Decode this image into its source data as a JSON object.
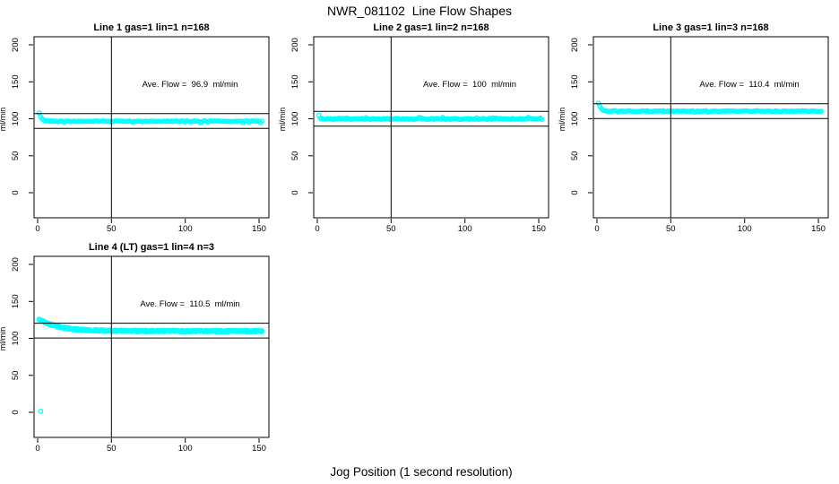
{
  "figure": {
    "title": "NWR_081102  Line Flow Shapes",
    "xlabel": "Jog Position (1 second resolution)",
    "background_color": "#FFFFFF",
    "axis_color": "#000000",
    "point_color": "#00FFFF"
  },
  "chart_data": [
    {
      "type": "scatter",
      "title": "Line 1 gas=1 lin=1 n=168",
      "annotation": "Ave. Flow =  96.9  ml/min",
      "ave_flow": 96.9,
      "units": "ml/min",
      "gas": 1,
      "lin": 1,
      "n": 168,
      "ylabel": "ml/min",
      "x_ticks": [
        0,
        50,
        100,
        150
      ],
      "y_ticks": [
        0,
        50,
        100,
        150,
        200
      ],
      "xlim": [
        0,
        155
      ],
      "ylim": [
        0,
        205
      ],
      "vline_x": 50,
      "hlines": [
        106.9,
        86.9
      ],
      "marker": "open-circle",
      "series_shape": {
        "x_start": 1,
        "x_end": 152,
        "start_y": 108,
        "plateau_y": 96.7,
        "decay_tau": 1.5,
        "noise": 0.5,
        "spike": -1.7,
        "spike_prob": 0.06,
        "runs": 1
      },
      "outliers": []
    },
    {
      "type": "scatter",
      "title": "Line 2 gas=1 lin=2 n=168",
      "annotation": "Ave. Flow =  100  ml/min",
      "ave_flow": 100,
      "units": "ml/min",
      "gas": 1,
      "lin": 2,
      "n": 168,
      "ylabel": "ml/min",
      "x_ticks": [
        0,
        50,
        100,
        150
      ],
      "y_ticks": [
        0,
        50,
        100,
        150,
        200
      ],
      "xlim": [
        0,
        155
      ],
      "ylim": [
        0,
        205
      ],
      "vline_x": 50,
      "hlines": [
        110,
        90
      ],
      "marker": "open-circle",
      "series_shape": {
        "x_start": 1,
        "x_end": 152,
        "start_y": 104,
        "plateau_y": 99.8,
        "decay_tau": 0.9,
        "noise": 0.7,
        "spike": 1.3,
        "spike_prob": 0.06,
        "runs": 1
      },
      "outliers": []
    },
    {
      "type": "scatter",
      "title": "Line 3 gas=1 lin=3 n=168",
      "annotation": "Ave. Flow =  110.4  ml/min",
      "ave_flow": 110.4,
      "units": "ml/min",
      "gas": 1,
      "lin": 3,
      "n": 168,
      "ylabel": "ml/min",
      "x_ticks": [
        0,
        50,
        100,
        150
      ],
      "y_ticks": [
        0,
        50,
        100,
        150,
        200
      ],
      "xlim": [
        0,
        155
      ],
      "ylim": [
        0,
        205
      ],
      "vline_x": 50,
      "hlines": [
        120.4,
        100.4
      ],
      "marker": "open-circle",
      "series_shape": {
        "x_start": 1,
        "x_end": 152,
        "start_y": 121,
        "plateau_y": 110.3,
        "decay_tau": 1.7,
        "noise": 0.6,
        "spike": -0.9,
        "spike_prob": 0.05,
        "runs": 1
      },
      "outliers": []
    },
    {
      "type": "scatter",
      "title": "Line 4 (LT) gas=1 lin=4 n=3",
      "annotation": "Ave. Flow =  110.5  ml/min",
      "ave_flow": 110.5,
      "units": "ml/min",
      "gas": 1,
      "lin": 4,
      "n": 3,
      "ylabel": "ml/min",
      "x_ticks": [
        0,
        50,
        100,
        150
      ],
      "y_ticks": [
        0,
        50,
        100,
        150,
        200
      ],
      "xlim": [
        0,
        155
      ],
      "ylim": [
        0,
        205
      ],
      "vline_x": 50,
      "hlines": [
        120.5,
        100.5
      ],
      "marker": "open-circle",
      "series_shape": {
        "x_start": 1,
        "x_end": 152,
        "start_y": 126,
        "plateau_y": 109.9,
        "decay_tau": 13,
        "noise": 1.1,
        "spike": 0,
        "spike_prob": 0,
        "runs": 3
      },
      "outliers": [
        [
          2,
          1.5
        ]
      ]
    }
  ],
  "layout_hints": {
    "grid": "off",
    "legend": "none",
    "panel_grid": "2 rows x 3 cols; panels at (1,1),(1,2),(1,3),(2,1); bottom-right cells empty"
  }
}
